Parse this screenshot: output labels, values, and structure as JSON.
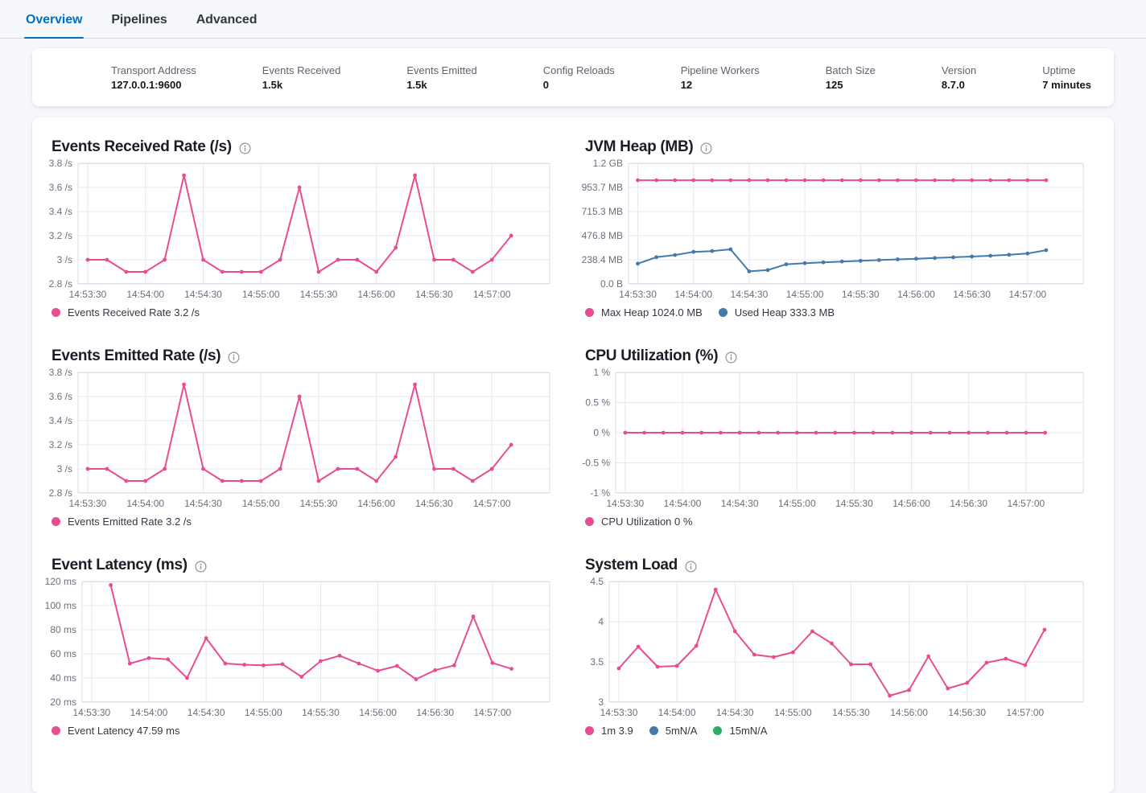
{
  "tabs": [
    {
      "label": "Overview",
      "active": true
    },
    {
      "label": "Pipelines",
      "active": false
    },
    {
      "label": "Advanced",
      "active": false
    }
  ],
  "colors": {
    "pink": "#EA4C92",
    "blue": "#4379AD",
    "green": "#2BAD63",
    "tab_active": "#0071C2"
  },
  "stats": [
    {
      "label": "Transport Address",
      "value": "127.0.0.1:9600"
    },
    {
      "label": "Events Received",
      "value": "1.5k"
    },
    {
      "label": "Events Emitted",
      "value": "1.5k"
    },
    {
      "label": "Config Reloads",
      "value": "0"
    },
    {
      "label": "Pipeline Workers",
      "value": "12"
    },
    {
      "label": "Batch Size",
      "value": "125"
    },
    {
      "label": "Version",
      "value": "8.7.0"
    },
    {
      "label": "Uptime",
      "value": "7 minutes"
    }
  ],
  "x_axis": {
    "domain_s": [
      3205,
      3450
    ],
    "ticks": [
      {
        "label": "14:53:30",
        "t": 3210
      },
      {
        "label": "14:54:00",
        "t": 3240
      },
      {
        "label": "14:54:30",
        "t": 3270
      },
      {
        "label": "14:55:00",
        "t": 3300
      },
      {
        "label": "14:55:30",
        "t": 3330
      },
      {
        "label": "14:56:00",
        "t": 3360
      },
      {
        "label": "14:56:30",
        "t": 3390
      },
      {
        "label": "14:57:00",
        "t": 3420
      }
    ]
  },
  "charts": [
    {
      "key": "events-received-rate",
      "title": "Events Received Rate (/s)",
      "type": "line",
      "y_domain": [
        2.8,
        3.8
      ],
      "y_label_width": 33,
      "y_ticks": [
        {
          "label": "3.8 /s",
          "v": 3.8
        },
        {
          "label": "3.6 /s",
          "v": 3.6
        },
        {
          "label": "3.4 /s",
          "v": 3.4
        },
        {
          "label": "3.2 /s",
          "v": 3.2
        },
        {
          "label": "3 /s",
          "v": 3.0
        },
        {
          "label": "2.8 /s",
          "v": 2.8
        }
      ],
      "series": [
        {
          "name": "Events Received Rate",
          "color": "#EA4C92",
          "start_s": 3210,
          "step_s": 10,
          "values": [
            3,
            3,
            2.9,
            2.9,
            3,
            3.7,
            3,
            2.9,
            2.9,
            2.9,
            3,
            3.6,
            2.9,
            3,
            3,
            2.9,
            3.1,
            3.7,
            3,
            3,
            2.9,
            3,
            3.2
          ]
        }
      ],
      "legend": [
        {
          "color": "#EA4C92",
          "label": "Events Received Rate 3.2 /s"
        }
      ]
    },
    {
      "key": "jvm-heap",
      "title": "JVM Heap (MB)",
      "type": "line",
      "y_domain": [
        0,
        1192
      ],
      "y_label_width": 54,
      "y_ticks": [
        {
          "label": "1.2 GB",
          "v": 1192
        },
        {
          "label": "953.7 MB",
          "v": 953.7
        },
        {
          "label": "715.3 MB",
          "v": 715.3
        },
        {
          "label": "476.8 MB",
          "v": 476.8
        },
        {
          "label": "238.4 MB",
          "v": 238.4
        },
        {
          "label": "0.0 B",
          "v": 0
        }
      ],
      "series": [
        {
          "name": "Max Heap",
          "color": "#EA4C92",
          "start_s": 3210,
          "step_s": 10,
          "values": [
            1024,
            1024,
            1024,
            1024,
            1024,
            1024,
            1024,
            1024,
            1024,
            1024,
            1024,
            1024,
            1024,
            1024,
            1024,
            1024,
            1024,
            1024,
            1024,
            1024,
            1024,
            1024,
            1024
          ]
        },
        {
          "name": "Used Heap",
          "color": "#4379AD",
          "start_s": 3210,
          "step_s": 10,
          "values": [
            200,
            264,
            285,
            316,
            324,
            342,
            124,
            137,
            194,
            205,
            213,
            221,
            228,
            235,
            242,
            249,
            256,
            263,
            270,
            278,
            288,
            300,
            333.3
          ]
        }
      ],
      "legend": [
        {
          "color": "#EA4C92",
          "label": "Max Heap 1024.0 MB"
        },
        {
          "color": "#4379AD",
          "label": "Used Heap 333.3 MB"
        }
      ]
    },
    {
      "key": "events-emitted-rate",
      "title": "Events Emitted Rate (/s)",
      "type": "line",
      "y_domain": [
        2.8,
        3.8
      ],
      "y_label_width": 33,
      "y_ticks": [
        {
          "label": "3.8 /s",
          "v": 3.8
        },
        {
          "label": "3.6 /s",
          "v": 3.6
        },
        {
          "label": "3.4 /s",
          "v": 3.4
        },
        {
          "label": "3.2 /s",
          "v": 3.2
        },
        {
          "label": "3 /s",
          "v": 3.0
        },
        {
          "label": "2.8 /s",
          "v": 2.8
        }
      ],
      "series": [
        {
          "name": "Events Emitted Rate",
          "color": "#EA4C92",
          "start_s": 3210,
          "step_s": 10,
          "values": [
            3,
            3,
            2.9,
            2.9,
            3,
            3.7,
            3,
            2.9,
            2.9,
            2.9,
            3,
            3.6,
            2.9,
            3,
            3,
            2.9,
            3.1,
            3.7,
            3,
            3,
            2.9,
            3,
            3.2
          ]
        }
      ],
      "legend": [
        {
          "color": "#EA4C92",
          "label": "Events Emitted Rate 3.2 /s"
        }
      ]
    },
    {
      "key": "cpu-utilization",
      "title": "CPU Utilization (%)",
      "type": "line",
      "y_domain": [
        -1,
        1
      ],
      "y_label_width": 38,
      "y_ticks": [
        {
          "label": "1 %",
          "v": 1
        },
        {
          "label": "0.5 %",
          "v": 0.5
        },
        {
          "label": "0 %",
          "v": 0
        },
        {
          "label": "-0.5 %",
          "v": -0.5
        },
        {
          "label": "-1 %",
          "v": -1
        }
      ],
      "series": [
        {
          "name": "CPU Utilization",
          "color": "#EA4C92",
          "start_s": 3210,
          "step_s": 10,
          "values": [
            0,
            0,
            0,
            0,
            0,
            0,
            0,
            0,
            0,
            0,
            0,
            0,
            0,
            0,
            0,
            0,
            0,
            0,
            0,
            0,
            0,
            0,
            0
          ]
        }
      ],
      "legend": [
        {
          "color": "#EA4C92",
          "label": "CPU Utilization 0 %"
        }
      ]
    },
    {
      "key": "event-latency",
      "title": "Event Latency (ms)",
      "type": "line",
      "y_domain": [
        20,
        120
      ],
      "y_label_width": 38,
      "y_ticks": [
        {
          "label": "120 ms",
          "v": 120
        },
        {
          "label": "100 ms",
          "v": 100
        },
        {
          "label": "80 ms",
          "v": 80
        },
        {
          "label": "60 ms",
          "v": 60
        },
        {
          "label": "40 ms",
          "v": 40
        },
        {
          "label": "20 ms",
          "v": 20
        }
      ],
      "series": [
        {
          "name": "Event Latency",
          "color": "#EA4C92",
          "start_s": 3220,
          "step_s": 10,
          "values": [
            117,
            52,
            56.5,
            55.5,
            40,
            73,
            52,
            51,
            50.5,
            51.5,
            41,
            54,
            58.5,
            52,
            46,
            50,
            39,
            46.5,
            50.5,
            91,
            52.5,
            47.59
          ]
        }
      ],
      "legend": [
        {
          "color": "#EA4C92",
          "label": "Event Latency 47.59 ms"
        }
      ]
    },
    {
      "key": "system-load",
      "title": "System Load",
      "type": "line",
      "y_domain": [
        3,
        4.5
      ],
      "y_label_width": 30,
      "y_ticks": [
        {
          "label": "4.5",
          "v": 4.5
        },
        {
          "label": "4",
          "v": 4
        },
        {
          "label": "3.5",
          "v": 3.5
        },
        {
          "label": "3",
          "v": 3
        }
      ],
      "series": [
        {
          "name": "1m",
          "color": "#EA4C92",
          "start_s": 3210,
          "step_s": 10,
          "values": [
            3.42,
            3.69,
            3.44,
            3.45,
            3.7,
            4.4,
            3.88,
            3.59,
            3.56,
            3.62,
            3.88,
            3.73,
            3.47,
            3.47,
            3.08,
            3.15,
            3.57,
            3.17,
            3.24,
            3.49,
            3.54,
            3.46,
            3.9
          ]
        }
      ],
      "legend": [
        {
          "color": "#EA4C92",
          "label": "1m 3.9"
        },
        {
          "color": "#4379AD",
          "label": "5mN/A"
        },
        {
          "color": "#2BAD63",
          "label": "15mN/A"
        }
      ]
    }
  ]
}
